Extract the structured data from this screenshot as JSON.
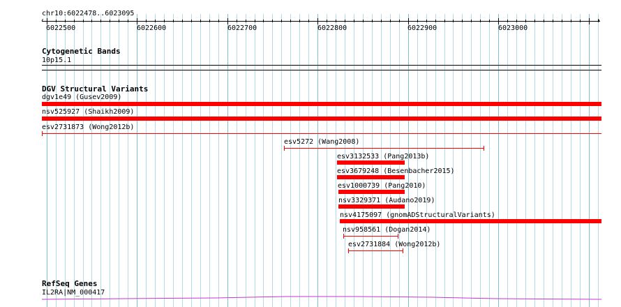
{
  "ruler": {
    "location": "chr10:6022478..6023095",
    "ticks": [
      "6022500",
      "6022600",
      "6022700",
      "6022800",
      "6022900",
      "6023000"
    ]
  },
  "tracks": {
    "cytobands": {
      "title": "Cytogenetic Bands",
      "band": "10p15.1"
    },
    "dgv": {
      "title": "DGV Structural Variants",
      "features": [
        {
          "label": "dgv1e49 (Gusev2009)",
          "style": "thick"
        },
        {
          "label": "nsv525927 (Shaikh2009)",
          "style": "thick"
        },
        {
          "label": "esv2731873 (Wong2012b)",
          "style": "thin"
        },
        {
          "label": "esv5272 (Wang2008)",
          "style": "capped"
        },
        {
          "label": "esv3132533 (Pang2013b)",
          "style": "thick"
        },
        {
          "label": "esv3679248 (Besenbacher2015)",
          "style": "thick"
        },
        {
          "label": "esv1000739 (Pang2010)",
          "style": "thick"
        },
        {
          "label": "nsv3329371 (Audano2019)",
          "style": "thick"
        },
        {
          "label": "nsv4175097 (gnomADStructuralVariants)",
          "style": "thick"
        },
        {
          "label": "nsv958561 (Dogan2014)",
          "style": "capped"
        },
        {
          "label": "esv2731884 (Wong2012b)",
          "style": "capped"
        }
      ]
    },
    "refseq": {
      "title": "RefSeq Genes",
      "gene": "IL2RA|NM_000417",
      "color": "#cc33cc"
    }
  },
  "colors": {
    "variant": "#ff0000",
    "grid_minor": "#b6dbe8",
    "grid_major": "#7cc0d6"
  }
}
